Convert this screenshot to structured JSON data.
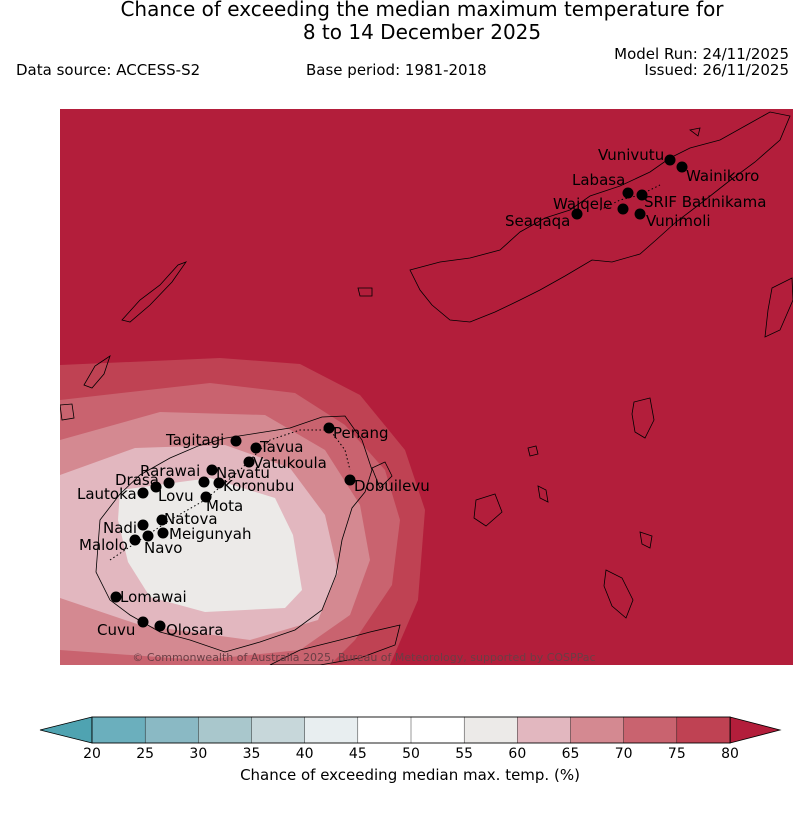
{
  "header": {
    "title_line1": "Chance of exceeding the median maximum temperature for",
    "title_line2": "8 to 14 December 2025",
    "data_source": "Data source: ACCESS-S2",
    "base_period": "Base period: 1981-2018",
    "model_run": "Model Run: 24/11/2025",
    "issued": "Issued: 26/11/2025"
  },
  "map": {
    "background_color": "#b31e3b",
    "copyright": "© Commonwealth of Australia 2025, Bureau of Meteorology, supported by COSPPac",
    "stations": [
      {
        "name": "Vunivutu"
      },
      {
        "name": "Wainikoro"
      },
      {
        "name": "Labasa"
      },
      {
        "name": "SRIF Batinikama"
      },
      {
        "name": "Waiqele"
      },
      {
        "name": "Seaqaqa"
      },
      {
        "name": "Vunimoli"
      },
      {
        "name": "Penang"
      },
      {
        "name": "Tagitagi"
      },
      {
        "name": "Tavua"
      },
      {
        "name": "Vatukoula"
      },
      {
        "name": "Rarawai"
      },
      {
        "name": "Navatu"
      },
      {
        "name": "Drasa"
      },
      {
        "name": "Koronubu"
      },
      {
        "name": "Lautoka"
      },
      {
        "name": "Lovu"
      },
      {
        "name": "Mota"
      },
      {
        "name": "Dobuilevu"
      },
      {
        "name": "Natova"
      },
      {
        "name": "Nadi"
      },
      {
        "name": "Meigunyah"
      },
      {
        "name": "Malolo"
      },
      {
        "name": "Navo"
      },
      {
        "name": "Lomawai"
      },
      {
        "name": "Cuvu"
      },
      {
        "name": "Olosara"
      }
    ]
  },
  "colorbar": {
    "ticks": [
      "20",
      "25",
      "30",
      "35",
      "40",
      "45",
      "50",
      "55",
      "60",
      "65",
      "70",
      "75",
      "80"
    ],
    "colors": [
      "#6bafbd",
      "#8ab9c4",
      "#a9c7cc",
      "#c7d7da",
      "#e8eef0",
      "#ffffff",
      "#ffffff",
      "#eceae8",
      "#e2b7bf",
      "#d48991",
      "#c9636f",
      "#bf4253"
    ],
    "low_color": "#4fa3b1",
    "high_color": "#b31e3b",
    "label": "Chance of exceeding median max. temp. (%)"
  }
}
